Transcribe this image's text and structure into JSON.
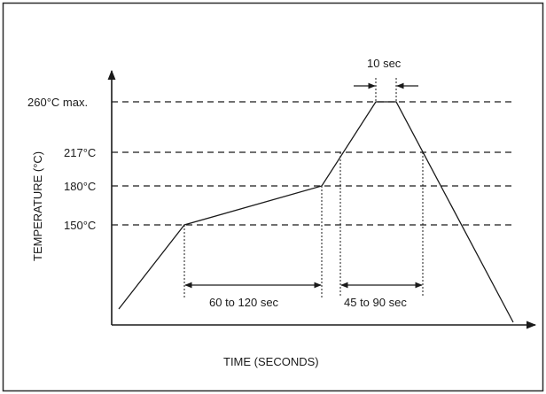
{
  "diagram": {
    "x_axis_title": "TIME (SECONDS)",
    "y_axis_title": "TEMPERATURE (°C)",
    "levels": [
      {
        "label": "260°C max.",
        "value": 260
      },
      {
        "label": "217°C",
        "value": 217
      },
      {
        "label": "180°C",
        "value": 180
      },
      {
        "label": "150°C",
        "value": 150
      }
    ],
    "intervals": {
      "preheat": "60 to 120 sec",
      "liquidus": "45 to 90 sec",
      "peak": "10 sec"
    },
    "colors": {
      "line": "#1a1a1a",
      "border": "#2b2b2b",
      "background": "#ffffff"
    }
  }
}
